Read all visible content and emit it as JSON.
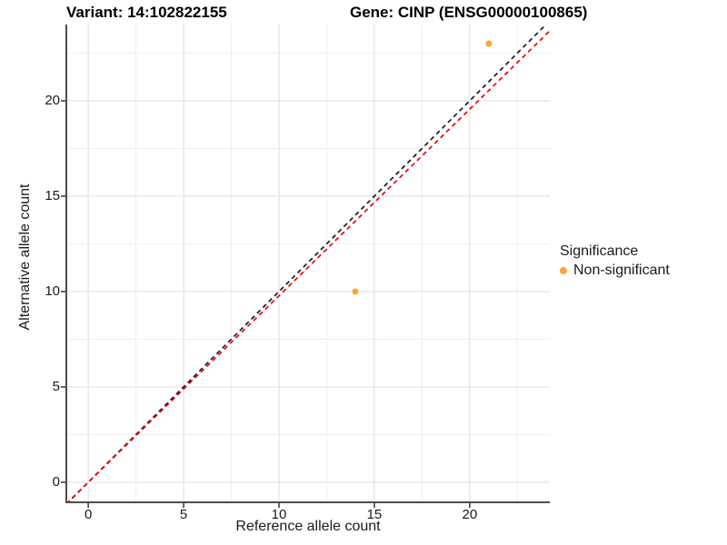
{
  "chart_data": {
    "type": "scatter",
    "titles": {
      "variant": "Variant: 14:102822155",
      "gene": "Gene: CINP (ENSG00000100865)"
    },
    "xlabel": "Reference allele count",
    "ylabel": "Alternative allele count",
    "xlim": [
      -1.15,
      24.2
    ],
    "ylim": [
      -1.05,
      24.0
    ],
    "x_ticks": [
      0,
      5,
      10,
      15,
      20
    ],
    "y_ticks": [
      0,
      5,
      10,
      15,
      20
    ],
    "minor_grid_step": 2.5,
    "grid": true,
    "points": [
      {
        "x": 21,
        "y": 23,
        "series": "Non-significant"
      },
      {
        "x": 14,
        "y": 10,
        "series": "Non-significant"
      }
    ],
    "point_size": 7,
    "lines": [
      {
        "name": "identity-line",
        "slope": 1.0,
        "intercept": 0,
        "style": "dashed",
        "color": "#1a1a1a"
      },
      {
        "name": "allelic-ratio-line",
        "slope": 0.978,
        "intercept": 0,
        "style": "dashed",
        "color": "#f20000"
      }
    ],
    "legend": {
      "title": "Significance",
      "position": "right",
      "entries": [
        {
          "label": "Non-significant",
          "color": "#ffa330"
        }
      ]
    },
    "colors": {
      "major_grid": "#e3e3e3",
      "minor_grid": "#efefef",
      "axis_line": "#4d4d4d",
      "tick_mark": "#333333"
    }
  }
}
